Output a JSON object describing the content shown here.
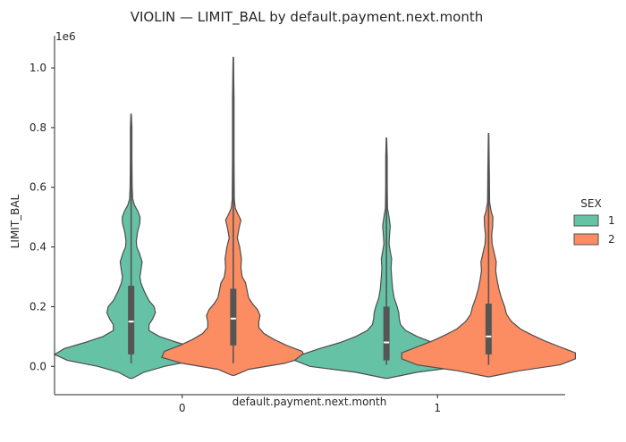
{
  "chart_data": {
    "type": "violin",
    "title": "VIOLIN — LIMIT_BAL by default.payment.next.month",
    "xlabel": "default.payment.next.month",
    "ylabel": "LIMIT_BAL",
    "y_offset_label": "1e6",
    "categories": [
      "0",
      "1"
    ],
    "ylim": [
      -0.095,
      1.09
    ],
    "yticks": [
      0.0,
      0.2,
      0.4,
      0.6,
      0.8,
      1.0
    ],
    "ytick_labels": [
      "0.0",
      "0.2",
      "0.4",
      "0.6",
      "0.8",
      "1.0"
    ],
    "grid": false,
    "legend": {
      "title": "SEX",
      "position": "right",
      "entries": [
        {
          "label": "1",
          "color": "#66c2a5"
        },
        {
          "label": "2",
          "color": "#fc8d62"
        }
      ]
    },
    "violins": [
      {
        "category": "0",
        "hue": "1",
        "color": "#66c2a5",
        "range": [
          -0.04,
          0.845
        ],
        "box": {
          "q1": 0.04,
          "median": 0.15,
          "q3": 0.27,
          "whisker_low": 0.01,
          "whisker_high": 0.56
        },
        "profile": [
          {
            "y": -0.04,
            "w": 0.005
          },
          {
            "y": -0.02,
            "w": 0.05
          },
          {
            "y": 0.0,
            "w": 0.13
          },
          {
            "y": 0.02,
            "w": 0.25
          },
          {
            "y": 0.04,
            "w": 0.3
          },
          {
            "y": 0.06,
            "w": 0.26
          },
          {
            "y": 0.08,
            "w": 0.18
          },
          {
            "y": 0.1,
            "w": 0.11
          },
          {
            "y": 0.12,
            "w": 0.07
          },
          {
            "y": 0.14,
            "w": 0.07
          },
          {
            "y": 0.16,
            "w": 0.085
          },
          {
            "y": 0.18,
            "w": 0.095
          },
          {
            "y": 0.2,
            "w": 0.09
          },
          {
            "y": 0.22,
            "w": 0.07
          },
          {
            "y": 0.25,
            "w": 0.052
          },
          {
            "y": 0.28,
            "w": 0.038
          },
          {
            "y": 0.3,
            "w": 0.034
          },
          {
            "y": 0.32,
            "w": 0.038
          },
          {
            "y": 0.35,
            "w": 0.043
          },
          {
            "y": 0.38,
            "w": 0.032
          },
          {
            "y": 0.4,
            "w": 0.022
          },
          {
            "y": 0.42,
            "w": 0.02
          },
          {
            "y": 0.45,
            "w": 0.025
          },
          {
            "y": 0.48,
            "w": 0.034
          },
          {
            "y": 0.5,
            "w": 0.035
          },
          {
            "y": 0.52,
            "w": 0.026
          },
          {
            "y": 0.54,
            "w": 0.013
          },
          {
            "y": 0.56,
            "w": 0.006
          },
          {
            "y": 0.6,
            "w": 0.004
          },
          {
            "y": 0.7,
            "w": 0.003
          },
          {
            "y": 0.8,
            "w": 0.003
          },
          {
            "y": 0.845,
            "w": 0.001
          }
        ]
      },
      {
        "category": "0",
        "hue": "2",
        "color": "#fc8d62",
        "range": [
          -0.03,
          1.035
        ],
        "box": {
          "q1": 0.07,
          "median": 0.16,
          "q3": 0.26,
          "whisker_low": 0.01,
          "whisker_high": 0.5
        },
        "profile": [
          {
            "y": -0.03,
            "w": 0.005
          },
          {
            "y": -0.01,
            "w": 0.06
          },
          {
            "y": 0.01,
            "w": 0.2
          },
          {
            "y": 0.03,
            "w": 0.28
          },
          {
            "y": 0.05,
            "w": 0.27
          },
          {
            "y": 0.07,
            "w": 0.21
          },
          {
            "y": 0.09,
            "w": 0.16
          },
          {
            "y": 0.11,
            "w": 0.12
          },
          {
            "y": 0.13,
            "w": 0.1
          },
          {
            "y": 0.15,
            "w": 0.1
          },
          {
            "y": 0.17,
            "w": 0.105
          },
          {
            "y": 0.19,
            "w": 0.095
          },
          {
            "y": 0.21,
            "w": 0.075
          },
          {
            "y": 0.23,
            "w": 0.06
          },
          {
            "y": 0.25,
            "w": 0.055
          },
          {
            "y": 0.28,
            "w": 0.048
          },
          {
            "y": 0.3,
            "w": 0.035
          },
          {
            "y": 0.33,
            "w": 0.03
          },
          {
            "y": 0.36,
            "w": 0.032
          },
          {
            "y": 0.4,
            "w": 0.025
          },
          {
            "y": 0.43,
            "w": 0.016
          },
          {
            "y": 0.46,
            "w": 0.022
          },
          {
            "y": 0.49,
            "w": 0.03
          },
          {
            "y": 0.51,
            "w": 0.018
          },
          {
            "y": 0.53,
            "w": 0.008
          },
          {
            "y": 0.56,
            "w": 0.004
          },
          {
            "y": 0.7,
            "w": 0.003
          },
          {
            "y": 0.9,
            "w": 0.003
          },
          {
            "y": 1.035,
            "w": 0.001
          }
        ]
      },
      {
        "category": "1",
        "hue": "1",
        "color": "#66c2a5",
        "range": [
          -0.04,
          0.765
        ],
        "box": {
          "q1": 0.02,
          "median": 0.08,
          "q3": 0.2,
          "whisker_low": 0.005,
          "whisker_high": 0.43
        },
        "profile": [
          {
            "y": -0.04,
            "w": 0.005
          },
          {
            "y": -0.02,
            "w": 0.12
          },
          {
            "y": 0.0,
            "w": 0.3
          },
          {
            "y": 0.02,
            "w": 0.36
          },
          {
            "y": 0.04,
            "w": 0.33
          },
          {
            "y": 0.06,
            "w": 0.26
          },
          {
            "y": 0.08,
            "w": 0.18
          },
          {
            "y": 0.1,
            "w": 0.12
          },
          {
            "y": 0.12,
            "w": 0.075
          },
          {
            "y": 0.14,
            "w": 0.055
          },
          {
            "y": 0.16,
            "w": 0.05
          },
          {
            "y": 0.18,
            "w": 0.048
          },
          {
            "y": 0.2,
            "w": 0.042
          },
          {
            "y": 0.23,
            "w": 0.03
          },
          {
            "y": 0.26,
            "w": 0.024
          },
          {
            "y": 0.3,
            "w": 0.02
          },
          {
            "y": 0.33,
            "w": 0.018
          },
          {
            "y": 0.36,
            "w": 0.02
          },
          {
            "y": 0.38,
            "w": 0.016
          },
          {
            "y": 0.41,
            "w": 0.01
          },
          {
            "y": 0.44,
            "w": 0.012
          },
          {
            "y": 0.47,
            "w": 0.015
          },
          {
            "y": 0.5,
            "w": 0.01
          },
          {
            "y": 0.53,
            "w": 0.004
          },
          {
            "y": 0.6,
            "w": 0.003
          },
          {
            "y": 0.7,
            "w": 0.003
          },
          {
            "y": 0.765,
            "w": 0.001
          }
        ]
      },
      {
        "category": "1",
        "hue": "2",
        "color": "#fc8d62",
        "range": [
          -0.035,
          0.78
        ],
        "box": {
          "q1": 0.04,
          "median": 0.1,
          "q3": 0.21,
          "whisker_low": 0.005,
          "whisker_high": 0.42
        },
        "profile": [
          {
            "y": -0.035,
            "w": 0.005
          },
          {
            "y": -0.015,
            "w": 0.12
          },
          {
            "y": 0.005,
            "w": 0.28
          },
          {
            "y": 0.025,
            "w": 0.34
          },
          {
            "y": 0.045,
            "w": 0.34
          },
          {
            "y": 0.065,
            "w": 0.28
          },
          {
            "y": 0.085,
            "w": 0.22
          },
          {
            "y": 0.105,
            "w": 0.17
          },
          {
            "y": 0.125,
            "w": 0.125
          },
          {
            "y": 0.15,
            "w": 0.09
          },
          {
            "y": 0.175,
            "w": 0.07
          },
          {
            "y": 0.2,
            "w": 0.063
          },
          {
            "y": 0.23,
            "w": 0.05
          },
          {
            "y": 0.26,
            "w": 0.04
          },
          {
            "y": 0.29,
            "w": 0.033
          },
          {
            "y": 0.32,
            "w": 0.028
          },
          {
            "y": 0.35,
            "w": 0.03
          },
          {
            "y": 0.38,
            "w": 0.022
          },
          {
            "y": 0.41,
            "w": 0.014
          },
          {
            "y": 0.44,
            "w": 0.012
          },
          {
            "y": 0.47,
            "w": 0.016
          },
          {
            "y": 0.5,
            "w": 0.017
          },
          {
            "y": 0.52,
            "w": 0.01
          },
          {
            "y": 0.55,
            "w": 0.004
          },
          {
            "y": 0.65,
            "w": 0.003
          },
          {
            "y": 0.78,
            "w": 0.001
          }
        ]
      }
    ]
  }
}
